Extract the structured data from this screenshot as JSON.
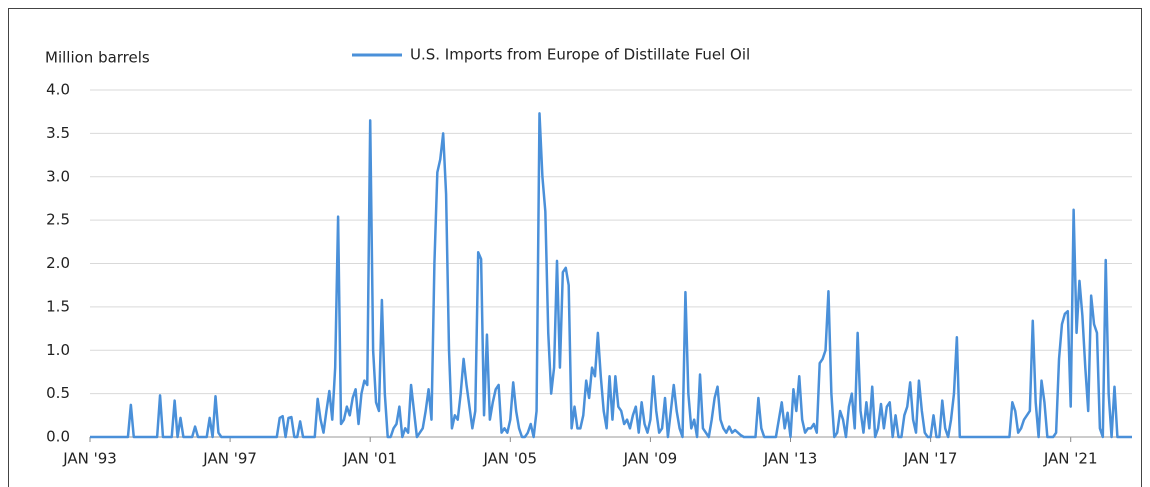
{
  "chart_data": {
    "type": "line",
    "y_label": "Million barrels",
    "x": [
      "1993-01",
      "1993-02",
      "1993-03",
      "1993-04",
      "1993-05",
      "1993-06",
      "1993-07",
      "1993-08",
      "1993-09",
      "1993-10",
      "1993-11",
      "1993-12",
      "1994-01",
      "1994-02",
      "1994-03",
      "1994-04",
      "1994-05",
      "1994-06",
      "1994-07",
      "1994-08",
      "1994-09",
      "1994-10",
      "1994-11",
      "1994-12",
      "1995-01",
      "1995-02",
      "1995-03",
      "1995-04",
      "1995-05",
      "1995-06",
      "1995-07",
      "1995-08",
      "1995-09",
      "1995-10",
      "1995-11",
      "1995-12",
      "1996-01",
      "1996-02",
      "1996-03",
      "1996-04",
      "1996-05",
      "1996-06",
      "1996-07",
      "1996-08",
      "1996-09",
      "1996-10",
      "1996-11",
      "1996-12",
      "1997-01",
      "1997-02",
      "1997-03",
      "1997-04",
      "1997-05",
      "1997-06",
      "1997-07",
      "1997-08",
      "1997-09",
      "1997-10",
      "1997-11",
      "1997-12",
      "1998-01",
      "1998-02",
      "1998-03",
      "1998-04",
      "1998-05",
      "1998-06",
      "1998-07",
      "1998-08",
      "1998-09",
      "1998-10",
      "1998-11",
      "1998-12",
      "1999-01",
      "1999-02",
      "1999-03",
      "1999-04",
      "1999-05",
      "1999-06",
      "1999-07",
      "1999-08",
      "1999-09",
      "1999-10",
      "1999-11",
      "1999-12",
      "2000-01",
      "2000-02",
      "2000-03",
      "2000-04",
      "2000-05",
      "2000-06",
      "2000-07",
      "2000-08",
      "2000-09",
      "2000-10",
      "2000-11",
      "2000-12",
      "2001-01",
      "2001-02",
      "2001-03",
      "2001-04",
      "2001-05",
      "2001-06",
      "2001-07",
      "2001-08",
      "2001-09",
      "2001-10",
      "2001-11",
      "2001-12",
      "2002-01",
      "2002-02",
      "2002-03",
      "2002-04",
      "2002-05",
      "2002-06",
      "2002-07",
      "2002-08",
      "2002-09",
      "2002-10",
      "2002-11",
      "2002-12",
      "2003-01",
      "2003-02",
      "2003-03",
      "2003-04",
      "2003-05",
      "2003-06",
      "2003-07",
      "2003-08",
      "2003-09",
      "2003-10",
      "2003-11",
      "2003-12",
      "2004-01",
      "2004-02",
      "2004-03",
      "2004-04",
      "2004-05",
      "2004-06",
      "2004-07",
      "2004-08",
      "2004-09",
      "2004-10",
      "2004-11",
      "2004-12",
      "2005-01",
      "2005-02",
      "2005-03",
      "2005-04",
      "2005-05",
      "2005-06",
      "2005-07",
      "2005-08",
      "2005-09",
      "2005-10",
      "2005-11",
      "2005-12",
      "2006-01",
      "2006-02",
      "2006-03",
      "2006-04",
      "2006-05",
      "2006-06",
      "2006-07",
      "2006-08",
      "2006-09",
      "2006-10",
      "2006-11",
      "2006-12",
      "2007-01",
      "2007-02",
      "2007-03",
      "2007-04",
      "2007-05",
      "2007-06",
      "2007-07",
      "2007-08",
      "2007-09",
      "2007-10",
      "2007-11",
      "2007-12",
      "2008-01",
      "2008-02",
      "2008-03",
      "2008-04",
      "2008-05",
      "2008-06",
      "2008-07",
      "2008-08",
      "2008-09",
      "2008-10",
      "2008-11",
      "2008-12",
      "2009-01",
      "2009-02",
      "2009-03",
      "2009-04",
      "2009-05",
      "2009-06",
      "2009-07",
      "2009-08",
      "2009-09",
      "2009-10",
      "2009-11",
      "2009-12",
      "2010-01",
      "2010-02",
      "2010-03",
      "2010-04",
      "2010-05",
      "2010-06",
      "2010-07",
      "2010-08",
      "2010-09",
      "2010-10",
      "2010-11",
      "2010-12",
      "2011-01",
      "2011-02",
      "2011-03",
      "2011-04",
      "2011-05",
      "2011-06",
      "2011-07",
      "2011-08",
      "2011-09",
      "2011-10",
      "2011-11",
      "2011-12",
      "2012-01",
      "2012-02",
      "2012-03",
      "2012-04",
      "2012-05",
      "2012-06",
      "2012-07",
      "2012-08",
      "2012-09",
      "2012-10",
      "2012-11",
      "2012-12",
      "2013-01",
      "2013-02",
      "2013-03",
      "2013-04",
      "2013-05",
      "2013-06",
      "2013-07",
      "2013-08",
      "2013-09",
      "2013-10",
      "2013-11",
      "2013-12",
      "2014-01",
      "2014-02",
      "2014-03",
      "2014-04",
      "2014-05",
      "2014-06",
      "2014-07",
      "2014-08",
      "2014-09",
      "2014-10",
      "2014-11",
      "2014-12",
      "2015-01",
      "2015-02",
      "2015-03",
      "2015-04",
      "2015-05",
      "2015-06",
      "2015-07",
      "2015-08",
      "2015-09",
      "2015-10",
      "2015-11",
      "2015-12",
      "2016-01",
      "2016-02",
      "2016-03",
      "2016-04",
      "2016-05",
      "2016-06",
      "2016-07",
      "2016-08",
      "2016-09",
      "2016-10",
      "2016-11",
      "2016-12",
      "2017-01",
      "2017-02",
      "2017-03",
      "2017-04",
      "2017-05",
      "2017-06",
      "2017-07",
      "2017-08",
      "2017-09",
      "2017-10",
      "2017-11",
      "2017-12",
      "2018-01",
      "2018-02",
      "2018-03",
      "2018-04",
      "2018-05",
      "2018-06",
      "2018-07",
      "2018-08",
      "2018-09",
      "2018-10",
      "2018-11",
      "2018-12",
      "2019-01",
      "2019-02",
      "2019-03",
      "2019-04",
      "2019-05",
      "2019-06",
      "2019-07",
      "2019-08",
      "2019-09",
      "2019-10",
      "2019-11",
      "2019-12",
      "2020-01",
      "2020-02",
      "2020-03",
      "2020-04",
      "2020-05",
      "2020-06",
      "2020-07",
      "2020-08",
      "2020-09",
      "2020-10",
      "2020-11",
      "2020-12",
      "2021-01",
      "2021-02",
      "2021-03",
      "2021-04",
      "2021-05",
      "2021-06",
      "2021-07",
      "2021-08",
      "2021-09",
      "2021-10",
      "2021-11",
      "2021-12",
      "2022-01",
      "2022-02",
      "2022-03",
      "2022-04",
      "2022-05",
      "2022-06",
      "2022-07",
      "2022-08",
      "2022-09",
      "2022-10"
    ],
    "series": [
      {
        "name": "U.S. Imports from Europe of Distillate Fuel Oil",
        "color": "#4a90d9",
        "values": [
          0,
          0,
          0,
          0,
          0,
          0,
          0,
          0,
          0,
          0,
          0,
          0,
          0,
          0,
          0.37,
          0,
          0,
          0,
          0,
          0,
          0,
          0,
          0,
          0,
          0.48,
          0,
          0,
          0,
          0,
          0.42,
          0,
          0.22,
          0,
          0,
          0,
          0,
          0.12,
          0,
          0,
          0,
          0,
          0.22,
          0,
          0.47,
          0.05,
          0,
          0,
          0,
          0,
          0,
          0,
          0,
          0,
          0,
          0,
          0,
          0,
          0,
          0,
          0,
          0,
          0,
          0,
          0,
          0,
          0.22,
          0.24,
          0,
          0.22,
          0.23,
          0,
          0,
          0.18,
          0,
          0,
          0,
          0,
          0,
          0.44,
          0.2,
          0.05,
          0.3,
          0.53,
          0.2,
          0.8,
          2.54,
          0.15,
          0.2,
          0.35,
          0.25,
          0.45,
          0.55,
          0.15,
          0.5,
          0.65,
          0.6,
          3.65,
          1.0,
          0.4,
          0.3,
          1.58,
          0.5,
          0,
          0,
          0.1,
          0.15,
          0.35,
          0,
          0.1,
          0.05,
          0.6,
          0.3,
          0,
          0.05,
          0.1,
          0.3,
          0.55,
          0.2,
          2.0,
          3.05,
          3.2,
          3.5,
          2.8,
          1.0,
          0.1,
          0.25,
          0.2,
          0.5,
          0.9,
          0.6,
          0.35,
          0.1,
          0.3,
          2.13,
          2.05,
          0.25,
          1.18,
          0.2,
          0.4,
          0.55,
          0.6,
          0.05,
          0.1,
          0.05,
          0.2,
          0.63,
          0.3,
          0.1,
          0,
          0,
          0.05,
          0.15,
          0,
          0.3,
          3.73,
          3.0,
          2.6,
          1.2,
          0.5,
          0.8,
          2.03,
          0.8,
          1.9,
          1.95,
          1.75,
          0.1,
          0.35,
          0.1,
          0.1,
          0.25,
          0.65,
          0.45,
          0.8,
          0.7,
          1.2,
          0.7,
          0.3,
          0.1,
          0.7,
          0.2,
          0.7,
          0.35,
          0.3,
          0.15,
          0.2,
          0.1,
          0.25,
          0.35,
          0.05,
          0.4,
          0.15,
          0.05,
          0.2,
          0.7,
          0.3,
          0.05,
          0.1,
          0.45,
          0,
          0.3,
          0.6,
          0.3,
          0.1,
          0,
          1.67,
          0.5,
          0.1,
          0.2,
          0,
          0.72,
          0.1,
          0.05,
          0,
          0.2,
          0.45,
          0.58,
          0.2,
          0.1,
          0.05,
          0.12,
          0.05,
          0.08,
          0.05,
          0.02,
          0,
          0,
          0,
          0,
          0,
          0.45,
          0.1,
          0,
          0,
          0,
          0,
          0,
          0.2,
          0.4,
          0.1,
          0.28,
          0,
          0.55,
          0.3,
          0.7,
          0.2,
          0.05,
          0.1,
          0.1,
          0.15,
          0.05,
          0.85,
          0.9,
          1.0,
          1.68,
          0.5,
          0,
          0.05,
          0.3,
          0.2,
          0,
          0.35,
          0.5,
          0.1,
          1.2,
          0.3,
          0.05,
          0.4,
          0.1,
          0.58,
          0,
          0.1,
          0.38,
          0.1,
          0.35,
          0.4,
          0,
          0.25,
          0,
          0,
          0.25,
          0.35,
          0.63,
          0.2,
          0.05,
          0.65,
          0.3,
          0.05,
          0,
          0,
          0.25,
          0,
          0,
          0.42,
          0.1,
          0,
          0.2,
          0.5,
          1.15,
          0,
          0,
          0,
          0,
          0,
          0,
          0,
          0,
          0,
          0,
          0,
          0,
          0,
          0,
          0,
          0,
          0,
          0,
          0.4,
          0.3,
          0.05,
          0.1,
          0.2,
          0.25,
          0.3,
          1.34,
          0.4,
          0,
          0.65,
          0.4,
          0,
          0,
          0,
          0.05,
          0.9,
          1.3,
          1.42,
          1.45,
          0.35,
          2.62,
          1.2,
          1.8,
          1.4,
          0.8,
          0.3,
          1.63,
          1.3,
          1.2,
          0.1,
          0,
          2.04,
          0.5,
          0,
          0.58,
          0,
          0,
          0,
          0,
          0,
          0
        ]
      }
    ],
    "ylim": [
      0,
      4.0
    ],
    "yticks": [
      {
        "value": 0,
        "label": "0.0"
      },
      0.5,
      {
        "value": 1,
        "label": "1.0"
      },
      1.5,
      {
        "value": 2,
        "label": "2.0"
      },
      2.5,
      {
        "value": 3,
        "label": "3.0"
      },
      3.5,
      {
        "value": 4,
        "label": "4.0"
      }
    ],
    "xticks": [
      {
        "value": "1993-01",
        "label": "JAN '93"
      },
      {
        "value": "1997-01",
        "label": "JAN '97"
      },
      {
        "value": "2001-01",
        "label": "JAN '01"
      },
      {
        "value": "2005-01",
        "label": "JAN '05"
      },
      {
        "value": "2009-01",
        "label": "JAN '09"
      },
      {
        "value": "2013-01",
        "label": "JAN '13"
      },
      {
        "value": "2017-01",
        "label": "JAN '17"
      },
      {
        "value": "2021-01",
        "label": "JAN '21"
      }
    ],
    "grid": true,
    "legend": "top"
  }
}
